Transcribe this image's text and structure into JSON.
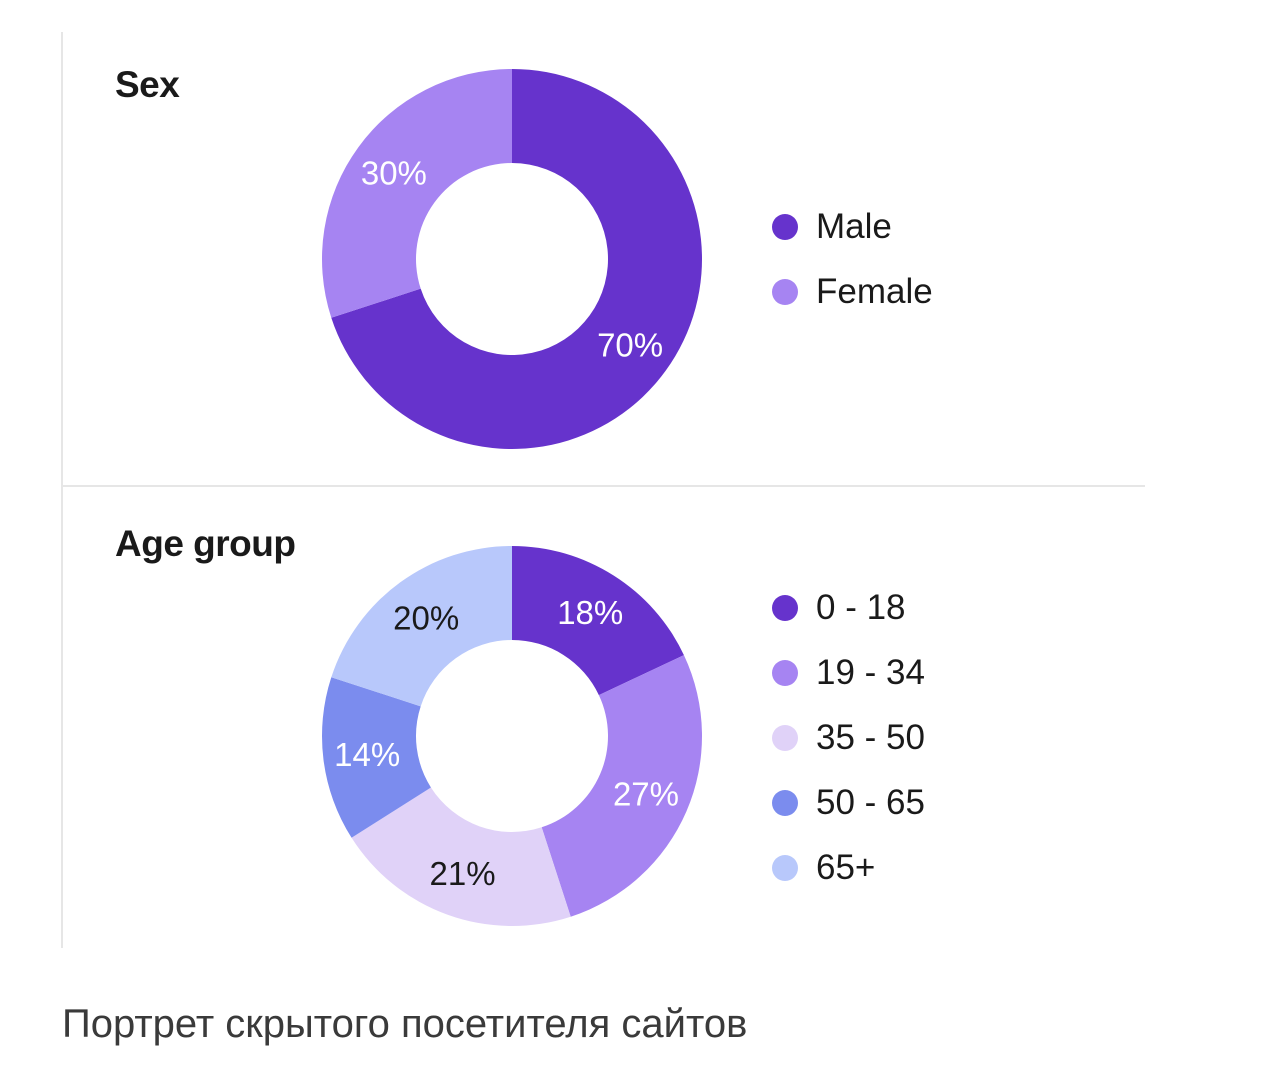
{
  "caption": "Портрет скрытого посетителя сайтов",
  "chart_data": [
    {
      "type": "pie",
      "title": "Sex",
      "categories": [
        "Male",
        "Female"
      ],
      "values": [
        70,
        30
      ],
      "data_labels": [
        "70%",
        "30%"
      ],
      "colors": [
        "#6633cc",
        "#a684f2"
      ],
      "label_colors": [
        "#ffffff",
        "#ffffff"
      ],
      "legend": "right"
    },
    {
      "type": "pie",
      "title": "Age group",
      "categories": [
        "0 - 18",
        "19 - 34",
        "35 - 50",
        "50 - 65",
        "65+"
      ],
      "values": [
        18,
        27,
        21,
        14,
        20
      ],
      "data_labels": [
        "18%",
        "27%",
        "21%",
        "14%",
        "20%"
      ],
      "colors": [
        "#6633cc",
        "#a684f2",
        "#e0d2f8",
        "#7b8cee",
        "#b8c8fb"
      ],
      "label_colors": [
        "#ffffff",
        "#ffffff",
        "#1a1a1a",
        "#ffffff",
        "#1a1a1a"
      ],
      "legend": "right"
    }
  ]
}
